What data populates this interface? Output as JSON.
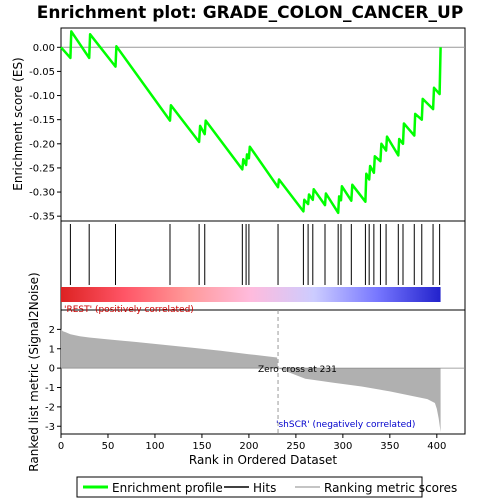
{
  "chart_data": {
    "type": "line",
    "title": "Enrichment plot: GRADE_COLON_CANCER_UP",
    "es_panel": {
      "ylabel": "Enrichment score (ES)",
      "ylim": [
        -0.36,
        0.04
      ],
      "yticks": [
        0.0,
        -0.05,
        -0.1,
        -0.15,
        -0.2,
        -0.25,
        -0.3,
        -0.35
      ],
      "ytick_labels": [
        "0.00",
        "-0.05",
        "-0.10",
        "-0.15",
        "-0.20",
        "-0.25",
        "-0.30",
        "-0.35"
      ],
      "series": [
        {
          "name": "Enrichment profile",
          "color": "#00ff00",
          "x": [
            0,
            10,
            11,
            30,
            31,
            58,
            59,
            116,
            117,
            147,
            148,
            153,
            154,
            193,
            194,
            197,
            198,
            200,
            201,
            231,
            232,
            258,
            259,
            263,
            264,
            268,
            269,
            281,
            282,
            295,
            296,
            298,
            299,
            309,
            310,
            324,
            325,
            328,
            329,
            333,
            334,
            340,
            341,
            346,
            347,
            359,
            360,
            364,
            365,
            376,
            377,
            384,
            385,
            396,
            397,
            403,
            404
          ],
          "y": [
            0.0,
            -0.022,
            0.033,
            -0.022,
            0.027,
            -0.04,
            0.002,
            -0.152,
            -0.12,
            -0.196,
            -0.163,
            -0.18,
            -0.152,
            -0.253,
            -0.232,
            -0.244,
            -0.222,
            -0.23,
            -0.206,
            -0.29,
            -0.274,
            -0.34,
            -0.316,
            -0.325,
            -0.305,
            -0.316,
            -0.294,
            -0.327,
            -0.303,
            -0.343,
            -0.309,
            -0.317,
            -0.288,
            -0.318,
            -0.285,
            -0.32,
            -0.262,
            -0.274,
            -0.246,
            -0.26,
            -0.226,
            -0.236,
            -0.2,
            -0.214,
            -0.185,
            -0.224,
            -0.19,
            -0.2,
            -0.158,
            -0.183,
            -0.138,
            -0.15,
            -0.107,
            -0.128,
            -0.084,
            -0.097,
            0.0
          ]
        }
      ]
    },
    "hits": {
      "name": "Hits",
      "positions": [
        10,
        30,
        58,
        116,
        147,
        153,
        193,
        197,
        200,
        231,
        258,
        263,
        268,
        281,
        295,
        298,
        309,
        324,
        328,
        333,
        340,
        346,
        359,
        364,
        376,
        384,
        396,
        403
      ]
    },
    "ranked_metric": {
      "name": "Ranking metric scores",
      "ylabel": "Ranked list metric (Signal2Noise)",
      "ylim": [
        -3.4,
        3.0
      ],
      "yticks": [
        2,
        1,
        0,
        -1,
        -2,
        -3
      ],
      "ytick_labels": [
        "2",
        "1",
        "0",
        "-1",
        "-2",
        "-3"
      ],
      "x": [
        0,
        2,
        5,
        10,
        20,
        30,
        50,
        80,
        110,
        140,
        170,
        200,
        230,
        231,
        260,
        290,
        320,
        350,
        370,
        390,
        398,
        400,
        402,
        404
      ],
      "y": [
        2.0,
        1.9,
        1.85,
        1.75,
        1.65,
        1.58,
        1.48,
        1.35,
        1.2,
        1.05,
        0.9,
        0.72,
        0.55,
        0.0,
        -0.55,
        -0.75,
        -0.95,
        -1.2,
        -1.4,
        -1.6,
        -1.8,
        -2.1,
        -2.6,
        -3.3
      ],
      "color": "#b0b0b0",
      "zero_cross": 231
    },
    "xlabel": "Rank in Ordered Dataset",
    "xlim": [
      0,
      430
    ],
    "xticks": [
      0,
      50,
      100,
      150,
      200,
      250,
      300,
      350,
      400
    ],
    "xtick_labels": [
      "0",
      "50",
      "100",
      "150",
      "200",
      "250",
      "300",
      "350",
      "400"
    ],
    "colorbar": {
      "stops": [
        "#dd2222",
        "#ff5566",
        "#ff9999",
        "#ffbbdd",
        "#ccccff",
        "#7777ff",
        "#2222cc"
      ]
    },
    "annotations": {
      "positive": "'REST' (positively correlated)",
      "negative": "'shSCR' (negatively correlated)",
      "zero_cross": "Zero cross at 231",
      "positive_color": "#cc0000",
      "negative_color": "#0000cc"
    },
    "legend": {
      "placement": "bottom",
      "items": [
        {
          "label": "Enrichment profile",
          "color": "#00ff00"
        },
        {
          "label": "Hits",
          "color": "#000000"
        },
        {
          "label": "Ranking metric scores",
          "color": "#b0b0b0"
        }
      ]
    }
  }
}
